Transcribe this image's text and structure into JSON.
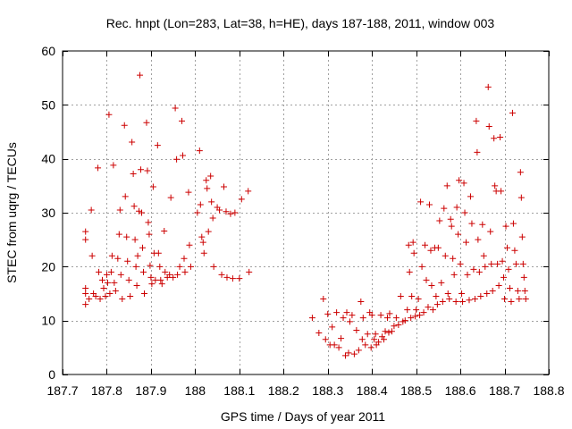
{
  "chart_data": {
    "type": "scatter",
    "title": "Rec. hnpt (Lon=283, Lat=38, h=HE), days 187-188, 2011, window 003",
    "xlabel": "GPS time / Days of year 2011",
    "ylabel": "STEC from uqrg / TECUs",
    "xlim": [
      187.7,
      188.8
    ],
    "ylim": [
      0,
      60
    ],
    "xticks": [
      187.7,
      187.8,
      187.9,
      188.0,
      188.1,
      188.2,
      188.3,
      188.4,
      188.5,
      188.6,
      188.7,
      188.8
    ],
    "xtick_labels": [
      "187.7",
      "187.8",
      "187.9",
      "188",
      "188.1",
      "188.2",
      "188.3",
      "188.4",
      "188.5",
      "188.6",
      "188.7",
      "188.8"
    ],
    "yticks": [
      0,
      10,
      20,
      30,
      40,
      50,
      60
    ],
    "ytick_labels": [
      "0",
      "10",
      "20",
      "30",
      "40",
      "50",
      "60"
    ],
    "grid": true,
    "marker": "plus",
    "color": "#cc0000",
    "series": [
      {
        "points": [
          [
            187.752,
            26.5
          ],
          [
            187.752,
            25.0
          ],
          [
            187.752,
            16.0
          ],
          [
            187.752,
            15.0
          ],
          [
            187.752,
            13.0
          ],
          [
            187.76,
            14.0
          ],
          [
            187.765,
            30.5
          ],
          [
            187.767,
            22.0
          ],
          [
            187.77,
            15.0
          ],
          [
            187.775,
            14.5
          ],
          [
            187.78,
            38.3
          ],
          [
            187.782,
            19.0
          ],
          [
            187.785,
            14.0
          ],
          [
            187.79,
            17.5
          ],
          [
            187.793,
            16.0
          ],
          [
            187.797,
            14.5
          ],
          [
            187.8,
            18.5
          ],
          [
            187.802,
            17.0
          ],
          [
            187.805,
            48.2
          ],
          [
            187.807,
            15.0
          ],
          [
            187.81,
            19.0
          ],
          [
            187.812,
            22.0
          ],
          [
            187.815,
            38.8
          ],
          [
            187.817,
            17.0
          ],
          [
            187.82,
            15.5
          ],
          [
            187.825,
            21.5
          ],
          [
            187.828,
            26.0
          ],
          [
            187.83,
            30.5
          ],
          [
            187.832,
            18.5
          ],
          [
            187.835,
            14.0
          ],
          [
            187.84,
            46.2
          ],
          [
            187.842,
            33.0
          ],
          [
            187.845,
            25.5
          ],
          [
            187.847,
            21.0
          ],
          [
            187.85,
            17.5
          ],
          [
            187.853,
            14.5
          ],
          [
            187.857,
            43.1
          ],
          [
            187.86,
            37.2
          ],
          [
            187.862,
            31.2
          ],
          [
            187.864,
            25.0
          ],
          [
            187.866,
            20.0
          ],
          [
            187.868,
            16.5
          ],
          [
            187.87,
            22.0
          ],
          [
            187.873,
            30.3
          ],
          [
            187.875,
            55.5
          ],
          [
            187.877,
            38.0
          ],
          [
            187.879,
            30.0
          ],
          [
            187.881,
            23.5
          ],
          [
            187.883,
            19.0
          ],
          [
            187.885,
            15.0
          ],
          [
            187.89,
            46.7
          ],
          [
            187.892,
            37.8
          ],
          [
            187.894,
            28.2
          ],
          [
            187.896,
            26.0
          ],
          [
            187.898,
            20.2
          ],
          [
            187.9,
            18.0
          ],
          [
            187.902,
            16.8
          ],
          [
            187.905,
            34.8
          ],
          [
            187.907,
            22.5
          ],
          [
            187.91,
            17.5
          ],
          [
            187.915,
            42.5
          ],
          [
            187.917,
            22.5
          ],
          [
            187.92,
            20.0
          ],
          [
            187.922,
            17.5
          ],
          [
            187.925,
            16.8
          ],
          [
            187.93,
            26.6
          ],
          [
            187.932,
            19.0
          ],
          [
            187.937,
            18.0
          ],
          [
            187.942,
            18.5
          ],
          [
            187.945,
            32.8
          ],
          [
            187.95,
            18.0
          ],
          [
            187.955,
            49.4
          ],
          [
            187.958,
            39.9
          ],
          [
            187.96,
            18.5
          ],
          [
            187.965,
            20.0
          ],
          [
            187.97,
            47.0
          ],
          [
            187.972,
            40.6
          ],
          [
            187.975,
            21.5
          ],
          [
            187.977,
            19.0
          ],
          [
            187.985,
            33.8
          ],
          [
            187.987,
            24.0
          ],
          [
            187.99,
            20.0
          ],
          [
            188.005,
            30.0
          ],
          [
            188.01,
            41.5
          ],
          [
            188.012,
            31.5
          ],
          [
            188.015,
            25.5
          ],
          [
            188.018,
            24.5
          ],
          [
            188.02,
            22.5
          ],
          [
            188.025,
            36.0
          ],
          [
            188.027,
            34.5
          ],
          [
            188.03,
            26.5
          ],
          [
            188.035,
            36.8
          ],
          [
            188.037,
            32.0
          ],
          [
            188.04,
            29.0
          ],
          [
            188.042,
            20.0
          ],
          [
            188.05,
            31.0
          ],
          [
            188.055,
            30.5
          ],
          [
            188.06,
            18.5
          ],
          [
            188.065,
            34.8
          ],
          [
            188.07,
            30.2
          ],
          [
            188.072,
            18.0
          ],
          [
            188.08,
            29.8
          ],
          [
            188.085,
            17.8
          ],
          [
            188.09,
            30.0
          ],
          [
            188.1,
            17.8
          ],
          [
            188.105,
            32.5
          ],
          [
            188.12,
            34.0
          ],
          [
            188.122,
            19.0
          ],
          [
            188.265,
            10.5
          ],
          [
            188.28,
            7.7
          ],
          [
            188.29,
            14.0
          ],
          [
            188.295,
            6.5
          ],
          [
            188.3,
            11.2
          ],
          [
            188.305,
            5.5
          ],
          [
            188.31,
            8.8
          ],
          [
            188.315,
            5.5
          ],
          [
            188.32,
            11.5
          ],
          [
            188.325,
            5.0
          ],
          [
            188.33,
            6.7
          ],
          [
            188.335,
            10.5
          ],
          [
            188.34,
            3.5
          ],
          [
            188.343,
            11.5
          ],
          [
            188.347,
            4.0
          ],
          [
            188.35,
            9.8
          ],
          [
            188.355,
            11.0
          ],
          [
            188.36,
            3.8
          ],
          [
            188.365,
            8.2
          ],
          [
            188.37,
            4.5
          ],
          [
            188.375,
            13.5
          ],
          [
            188.378,
            6.5
          ],
          [
            188.38,
            10.5
          ],
          [
            188.385,
            5.5
          ],
          [
            188.39,
            7.5
          ],
          [
            188.395,
            11.5
          ],
          [
            188.398,
            5.0
          ],
          [
            188.4,
            11.0
          ],
          [
            188.405,
            6.5
          ],
          [
            188.408,
            7.5
          ],
          [
            188.41,
            5.5
          ],
          [
            188.415,
            6.0
          ],
          [
            188.42,
            11.0
          ],
          [
            188.423,
            7.0
          ],
          [
            188.427,
            6.5
          ],
          [
            188.43,
            8.0
          ],
          [
            188.435,
            10.5
          ],
          [
            188.438,
            7.8
          ],
          [
            188.44,
            11.3
          ],
          [
            188.445,
            8.0
          ],
          [
            188.45,
            9.0
          ],
          [
            188.455,
            10.5
          ],
          [
            188.46,
            9.2
          ],
          [
            188.465,
            14.5
          ],
          [
            188.47,
            9.8
          ],
          [
            188.475,
            10.0
          ],
          [
            188.48,
            12.0
          ],
          [
            188.483,
            24.0
          ],
          [
            188.485,
            19.0
          ],
          [
            188.488,
            10.5
          ],
          [
            188.49,
            14.5
          ],
          [
            188.493,
            24.5
          ],
          [
            188.495,
            22.5
          ],
          [
            188.498,
            10.8
          ],
          [
            188.5,
            12.0
          ],
          [
            188.505,
            14.0
          ],
          [
            188.508,
            11.0
          ],
          [
            188.51,
            32.0
          ],
          [
            188.513,
            20.0
          ],
          [
            188.517,
            11.5
          ],
          [
            188.52,
            24.0
          ],
          [
            188.523,
            17.5
          ],
          [
            188.527,
            12.5
          ],
          [
            188.53,
            31.5
          ],
          [
            188.533,
            23.0
          ],
          [
            188.535,
            16.5
          ],
          [
            188.538,
            12.0
          ],
          [
            188.542,
            23.5
          ],
          [
            188.545,
            14.5
          ],
          [
            188.548,
            13.0
          ],
          [
            188.55,
            23.5
          ],
          [
            188.553,
            28.5
          ],
          [
            188.557,
            17.0
          ],
          [
            188.56,
            13.5
          ],
          [
            188.563,
            30.8
          ],
          [
            188.566,
            22.0
          ],
          [
            188.57,
            35.0
          ],
          [
            188.572,
            15.0
          ],
          [
            188.575,
            14.0
          ],
          [
            188.578,
            28.8
          ],
          [
            188.58,
            27.5
          ],
          [
            188.583,
            21.5
          ],
          [
            188.586,
            18.5
          ],
          [
            188.59,
            13.5
          ],
          [
            188.592,
            31.0
          ],
          [
            188.595,
            26.0
          ],
          [
            188.597,
            36.0
          ],
          [
            188.6,
            20.5
          ],
          [
            188.603,
            15.0
          ],
          [
            188.605,
            13.5
          ],
          [
            188.608,
            35.5
          ],
          [
            188.61,
            30.0
          ],
          [
            188.613,
            24.5
          ],
          [
            188.616,
            18.5
          ],
          [
            188.62,
            13.8
          ],
          [
            188.623,
            33.0
          ],
          [
            188.626,
            28.0
          ],
          [
            188.63,
            19.5
          ],
          [
            188.633,
            14.0
          ],
          [
            188.636,
            47.0
          ],
          [
            188.638,
            41.2
          ],
          [
            188.64,
            25.0
          ],
          [
            188.643,
            19.0
          ],
          [
            188.646,
            14.5
          ],
          [
            188.65,
            27.8
          ],
          [
            188.653,
            22.0
          ],
          [
            188.656,
            20.0
          ],
          [
            188.66,
            15.0
          ],
          [
            188.663,
            53.3
          ],
          [
            188.665,
            46.0
          ],
          [
            188.668,
            26.5
          ],
          [
            188.67,
            20.5
          ],
          [
            188.673,
            15.5
          ],
          [
            188.676,
            43.8
          ],
          [
            188.678,
            35.0
          ],
          [
            188.681,
            34.0
          ],
          [
            188.684,
            20.5
          ],
          [
            188.687,
            16.5
          ],
          [
            188.69,
            44.0
          ],
          [
            188.692,
            34.0
          ],
          [
            188.695,
            21.0
          ],
          [
            188.698,
            18.0
          ],
          [
            188.7,
            14.0
          ],
          [
            188.703,
            27.5
          ],
          [
            188.706,
            23.5
          ],
          [
            188.709,
            19.5
          ],
          [
            188.712,
            16.0
          ],
          [
            188.715,
            13.5
          ],
          [
            188.718,
            48.5
          ],
          [
            188.72,
            28.0
          ],
          [
            188.723,
            23.0
          ],
          [
            188.726,
            20.5
          ],
          [
            188.73,
            15.5
          ],
          [
            188.733,
            14.0
          ],
          [
            188.736,
            37.5
          ],
          [
            188.738,
            32.8
          ],
          [
            188.74,
            25.5
          ],
          [
            188.742,
            20.5
          ],
          [
            188.744,
            18.0
          ],
          [
            188.746,
            15.5
          ],
          [
            188.748,
            14.0
          ]
        ]
      }
    ]
  }
}
